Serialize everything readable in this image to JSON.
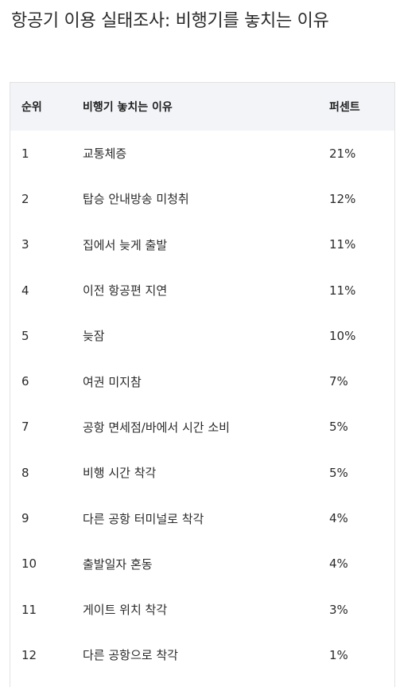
{
  "title": "항공기 이용 실태조사: 비행기를 놓치는 이유",
  "table": {
    "headers": [
      "순위",
      "비행기 놓치는 이유",
      "퍼센트"
    ],
    "rows": [
      [
        "1",
        "교통체증",
        "21%"
      ],
      [
        "2",
        "탑승 안내방송 미청취",
        "12%"
      ],
      [
        "3",
        "집에서 늦게 출발",
        "11%"
      ],
      [
        "4",
        "이전 항공편 지연",
        "11%"
      ],
      [
        "5",
        "늦잠",
        "10%"
      ],
      [
        "6",
        "여권 미지참",
        "7%"
      ],
      [
        "7",
        "공항 면세점/바에서 시간 소비",
        "5%"
      ],
      [
        "8",
        "비행 시간 착각",
        "5%"
      ],
      [
        "9",
        "다른 공항 터미널로 착각",
        "4%"
      ],
      [
        "10",
        "출발일자 혼동",
        "4%"
      ],
      [
        "11",
        "게이트 위치 착각",
        "3%"
      ],
      [
        "12",
        "다른 공항으로 착각",
        "1%"
      ]
    ]
  }
}
